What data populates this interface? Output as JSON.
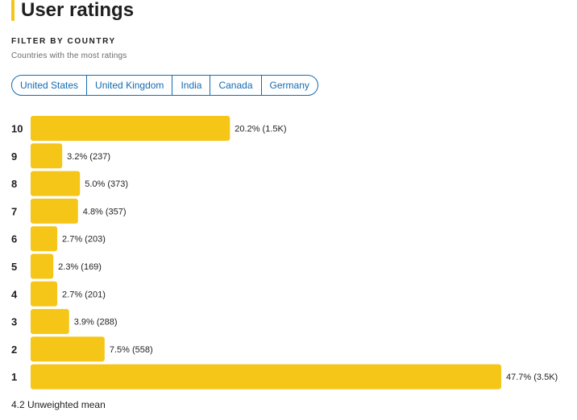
{
  "header": {
    "title": "User ratings"
  },
  "filter": {
    "label": "FILTER BY COUNTRY",
    "sublabel": "Countries with the most ratings",
    "countries": [
      "United States",
      "United Kingdom",
      "India",
      "Canada",
      "Germany"
    ]
  },
  "colors": {
    "bar": "#f5c518",
    "chip": "#136cb2",
    "accent": "#f5c518"
  },
  "chart_data": {
    "type": "bar",
    "orientation": "horizontal",
    "categories": [
      "10",
      "9",
      "8",
      "7",
      "6",
      "5",
      "4",
      "3",
      "2",
      "1"
    ],
    "values": [
      20.2,
      3.2,
      5.0,
      4.8,
      2.7,
      2.3,
      2.7,
      3.9,
      7.5,
      47.7
    ],
    "labels": [
      "20.2% (1.5K)",
      "3.2% (237)",
      "5.0% (373)",
      "4.8% (357)",
      "2.7% (203)",
      "2.3% (169)",
      "2.7% (201)",
      "3.9% (288)",
      "7.5% (558)",
      "47.7% (3.5K)"
    ],
    "xlim": [
      0,
      47.7
    ],
    "grid": false,
    "legend": "none"
  },
  "summary": {
    "mean_text": "4.2 Unweighted mean"
  }
}
